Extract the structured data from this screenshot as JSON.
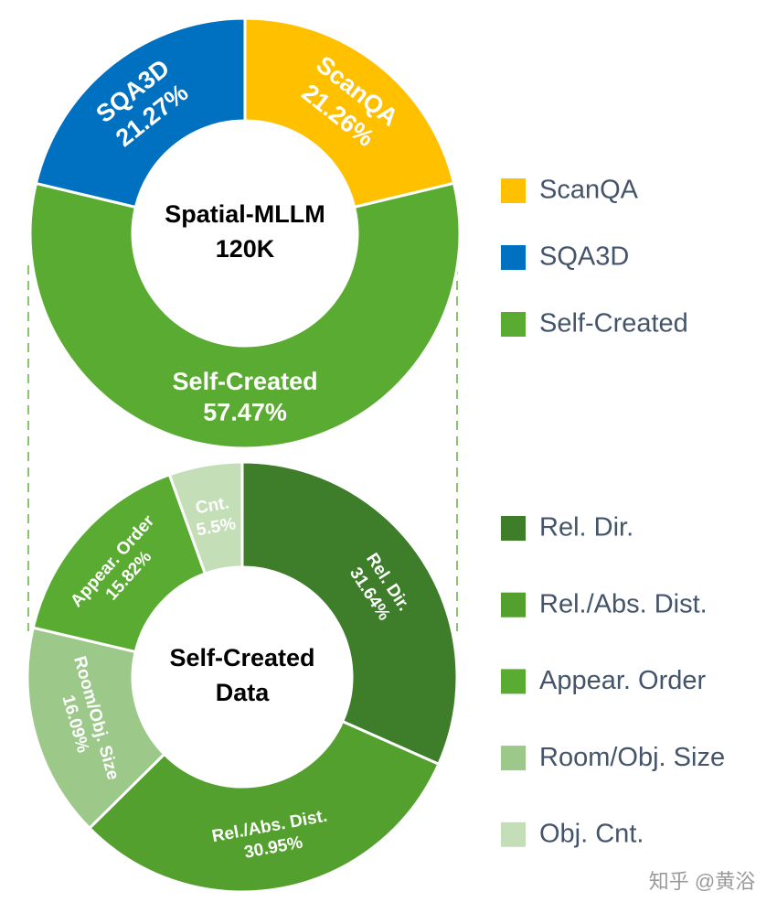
{
  "chart_data": [
    {
      "type": "pie",
      "center_label": [
        "Spatial-MLLM",
        "120K"
      ],
      "categories": [
        "ScanQA",
        "SQA3D",
        "Self-Created"
      ],
      "slice_labels": [
        "ScanQA",
        "SQA3D",
        "Self-Created"
      ],
      "values": [
        21.26,
        21.27,
        57.47
      ],
      "value_labels": [
        "21.26%",
        "21.27%",
        "57.47%"
      ],
      "colors": [
        "#ffc000",
        "#0070c0",
        "#5aab32"
      ]
    },
    {
      "type": "pie",
      "center_label": [
        "Self-Created",
        "Data"
      ],
      "categories": [
        "Rel. Dir.",
        "Rel./Abs. Dist.",
        "Appear. Order",
        "Room/Obj. Size",
        "Obj. Cnt."
      ],
      "slice_labels": [
        "Rel. Dir.",
        "Rel./Abs. Dist.",
        "Appear. Order",
        "Room/Obj. Size",
        "Cnt."
      ],
      "values": [
        31.64,
        30.95,
        15.82,
        16.09,
        5.5
      ],
      "value_labels": [
        "31.64%",
        "30.95%",
        "15.82%",
        "16.09%",
        "5.5%"
      ],
      "colors": [
        "#3e7d29",
        "#54a02f",
        "#5aab32",
        "#9cc88a",
        "#c4dfb8"
      ]
    }
  ],
  "watermark": "知乎 @黄浴"
}
